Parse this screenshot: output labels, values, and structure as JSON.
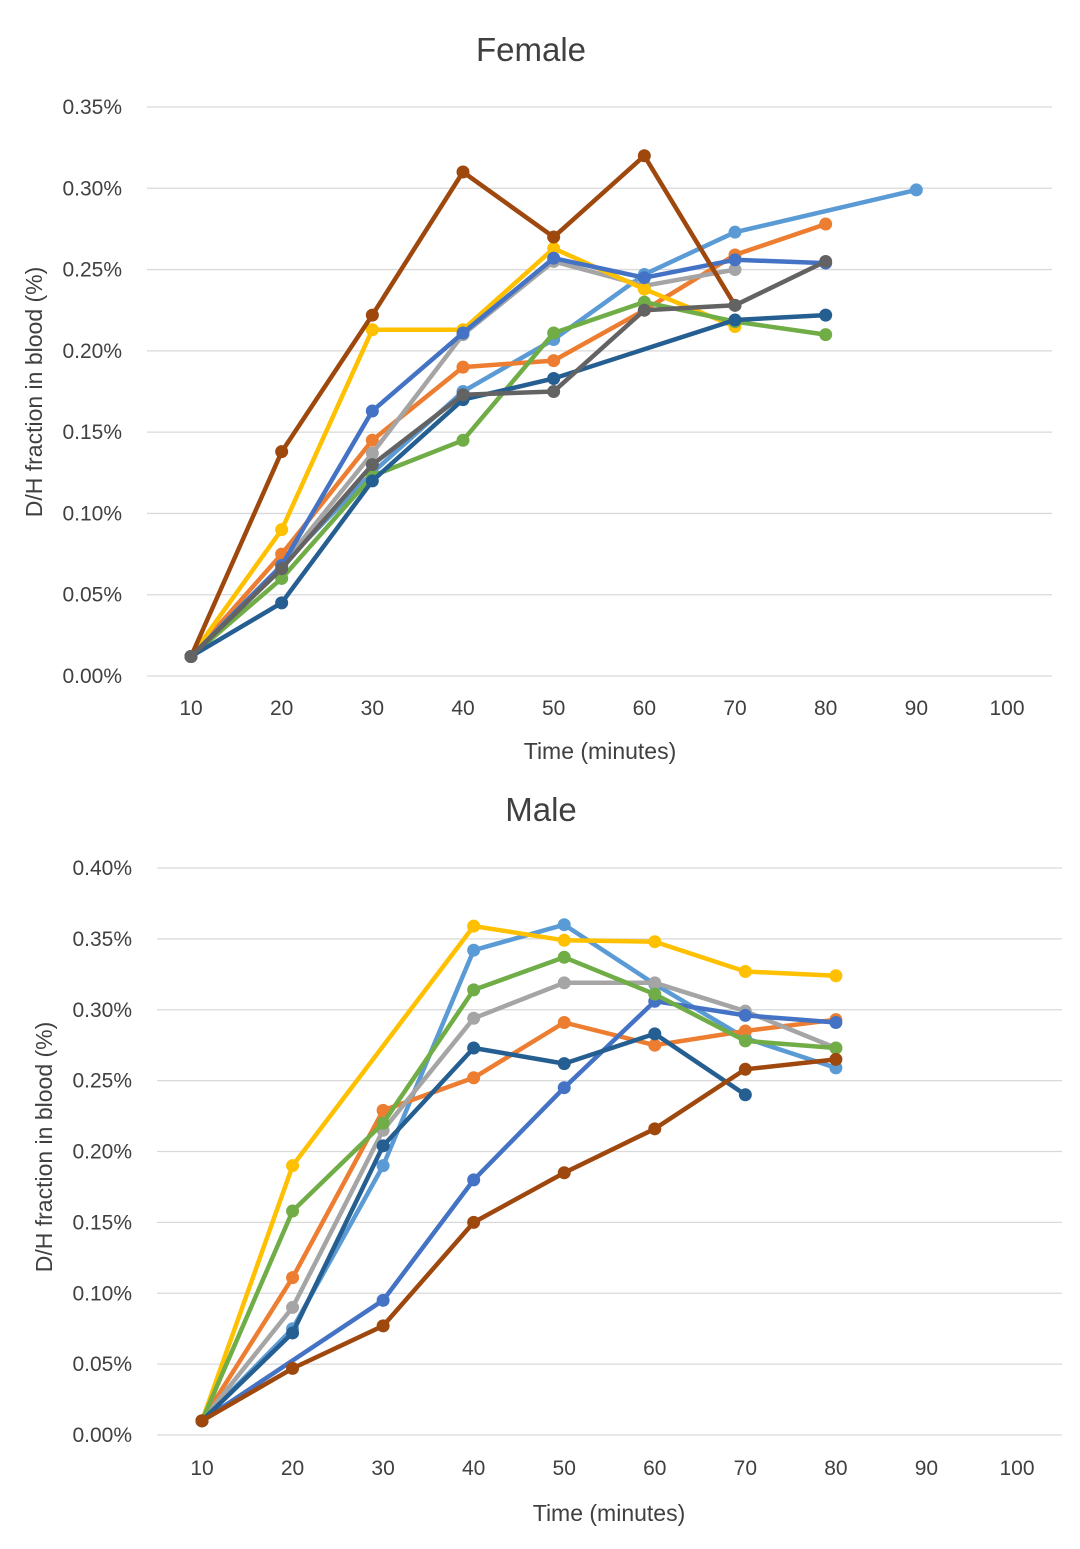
{
  "colors": [
    "#5b9bd5",
    "#ed7d31",
    "#a5a5a5",
    "#ffc000",
    "#4472c4",
    "#70ad47",
    "#255e91",
    "#9e480e",
    "#636363"
  ],
  "chart_data": [
    {
      "type": "line",
      "title": "Female",
      "xlabel": "Time (minutes)",
      "ylabel": "D/H fraction in  blood (%)",
      "x_ticks": [
        "10",
        "20",
        "30",
        "40",
        "50",
        "60",
        "70",
        "80",
        "90",
        "100"
      ],
      "y_ticks": [
        "0.00%",
        "0.05%",
        "0.10%",
        "0.15%",
        "0.20%",
        "0.25%",
        "0.30%",
        "0.35%"
      ],
      "ylim": [
        0,
        0.35
      ],
      "xlim": [
        10,
        100
      ],
      "grid": true,
      "legend": false,
      "series": [
        {
          "color": "#5b9bd5",
          "x": [
            10,
            20,
            30,
            40,
            50,
            60,
            70,
            90
          ],
          "values": [
            0.012,
            0.068,
            0.125,
            0.175,
            0.207,
            0.247,
            0.273,
            0.299
          ]
        },
        {
          "color": "#ed7d31",
          "x": [
            10,
            20,
            30,
            40,
            50,
            60,
            70,
            80
          ],
          "values": [
            0.012,
            0.075,
            0.145,
            0.19,
            0.194,
            0.225,
            0.259,
            0.278
          ]
        },
        {
          "color": "#a5a5a5",
          "x": [
            10,
            20,
            30,
            40,
            50,
            60,
            70
          ],
          "values": [
            0.012,
            0.068,
            0.137,
            0.21,
            0.255,
            0.24,
            0.25
          ]
        },
        {
          "color": "#ffc000",
          "x": [
            10,
            20,
            30,
            40,
            50,
            60,
            70
          ],
          "values": [
            0.012,
            0.09,
            0.213,
            0.213,
            0.263,
            0.238,
            0.215
          ]
        },
        {
          "color": "#4472c4",
          "x": [
            10,
            20,
            30,
            40,
            50,
            60,
            70,
            80
          ],
          "values": [
            0.012,
            0.068,
            0.163,
            0.211,
            0.257,
            0.245,
            0.256,
            0.254
          ]
        },
        {
          "color": "#70ad47",
          "x": [
            10,
            20,
            30,
            40,
            50,
            60,
            70,
            80
          ],
          "values": [
            0.012,
            0.06,
            0.123,
            0.145,
            0.211,
            0.23,
            0.218,
            0.21
          ]
        },
        {
          "color": "#255e91",
          "x": [
            10,
            20,
            30,
            40,
            50,
            70,
            80
          ],
          "values": [
            0.012,
            0.045,
            0.12,
            0.17,
            0.183,
            0.219,
            0.222
          ]
        },
        {
          "color": "#9e480e",
          "x": [
            10,
            20,
            30,
            40,
            50,
            60,
            70
          ],
          "values": [
            0.012,
            0.138,
            0.222,
            0.31,
            0.27,
            0.32,
            0.228
          ]
        },
        {
          "color": "#636363",
          "x": [
            10,
            20,
            30,
            40,
            50,
            60,
            70,
            80
          ],
          "values": [
            0.012,
            0.066,
            0.13,
            0.173,
            0.175,
            0.225,
            0.228,
            0.255
          ]
        }
      ]
    },
    {
      "type": "line",
      "title": "Male",
      "xlabel": "Time (minutes)",
      "ylabel": "D/H fraction in blood (%)",
      "x_ticks": [
        "10",
        "20",
        "30",
        "40",
        "50",
        "60",
        "70",
        "80",
        "90",
        "100"
      ],
      "y_ticks": [
        "0.00%",
        "0.05%",
        "0.10%",
        "0.15%",
        "0.20%",
        "0.25%",
        "0.30%",
        "0.35%",
        "0.40%"
      ],
      "ylim": [
        0,
        0.4
      ],
      "xlim": [
        10,
        100
      ],
      "grid": true,
      "legend": false,
      "series": [
        {
          "color": "#5b9bd5",
          "x": [
            10,
            20,
            30,
            40,
            50,
            60,
            70,
            80
          ],
          "values": [
            0.01,
            0.075,
            0.19,
            0.342,
            0.36,
            0.318,
            0.28,
            0.259
          ]
        },
        {
          "color": "#ed7d31",
          "x": [
            10,
            20,
            30,
            40,
            50,
            60,
            70,
            80
          ],
          "values": [
            0.01,
            0.111,
            0.229,
            0.252,
            0.291,
            0.275,
            0.285,
            0.293
          ]
        },
        {
          "color": "#a5a5a5",
          "x": [
            10,
            20,
            30,
            40,
            50,
            60,
            70,
            80
          ],
          "values": [
            0.01,
            0.09,
            0.215,
            0.294,
            0.319,
            0.319,
            0.299,
            0.273
          ]
        },
        {
          "color": "#ffc000",
          "x": [
            10,
            20,
            40,
            50,
            60,
            70,
            80
          ],
          "values": [
            0.01,
            0.19,
            0.359,
            0.349,
            0.348,
            0.327,
            0.324
          ]
        },
        {
          "color": "#4472c4",
          "x": [
            10,
            30,
            40,
            50,
            60,
            70,
            80
          ],
          "values": [
            0.01,
            0.095,
            0.18,
            0.245,
            0.306,
            0.296,
            0.291
          ]
        },
        {
          "color": "#70ad47",
          "x": [
            10,
            20,
            30,
            40,
            50,
            60,
            70,
            80
          ],
          "values": [
            0.01,
            0.158,
            0.22,
            0.314,
            0.337,
            0.311,
            0.278,
            0.273
          ]
        },
        {
          "color": "#255e91",
          "x": [
            10,
            20,
            30,
            40,
            50,
            60,
            70
          ],
          "values": [
            0.01,
            0.072,
            0.204,
            0.273,
            0.262,
            0.283,
            0.24
          ]
        },
        {
          "color": "#9e480e",
          "x": [
            10,
            20,
            30,
            40,
            50,
            60,
            70,
            80
          ],
          "values": [
            0.01,
            0.047,
            0.077,
            0.15,
            0.185,
            0.216,
            0.258,
            0.265
          ]
        }
      ]
    }
  ]
}
